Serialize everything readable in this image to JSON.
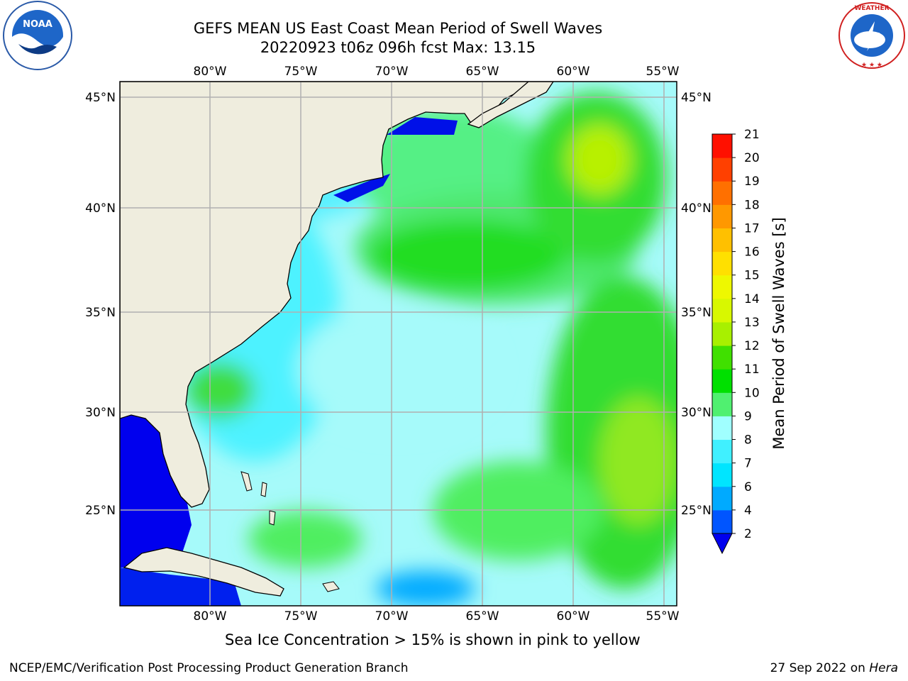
{
  "title_line1": "GEFS MEAN US East Coast Mean Period of Swell Waves",
  "title_line2": "20220923 t06z 096h fcst   Max: 13.15",
  "logos": {
    "left": "noaa-logo",
    "right": "nws-logo"
  },
  "map": {
    "lon_labels": [
      "80°W",
      "75°W",
      "70°W",
      "65°W",
      "60°W",
      "55°W"
    ],
    "lat_labels": [
      "45°N",
      "40°N",
      "35°N",
      "30°N",
      "25°N"
    ],
    "lon_range": [
      "85°W",
      "54.3°W"
    ],
    "lat_range": [
      "20.3°N",
      "45.8°N"
    ],
    "grid": true,
    "land_color": "#efedde",
    "grid_color": "#b0b0b0"
  },
  "colorbar": {
    "label": "Mean Period of Swell Waves [s]",
    "ticks": [
      "2",
      "4",
      "6",
      "7",
      "8",
      "9",
      "10",
      "11",
      "12",
      "13",
      "14",
      "15",
      "16",
      "17",
      "18",
      "19",
      "20",
      "21"
    ],
    "colors": [
      "#0055ff",
      "#00aaff",
      "#00e5ff",
      "#40f0ff",
      "#a0ffff",
      "#50f070",
      "#00e000",
      "#40e000",
      "#a8f000",
      "#d8f800",
      "#eef800",
      "#ffe000",
      "#ffc000",
      "#ff9800",
      "#ff7000",
      "#ff4000",
      "#ff1000"
    ],
    "extend_color": "#0000ee"
  },
  "sea_ice_note": "Sea Ice Concentration > 15% is shown in pink to yellow",
  "footer": {
    "left": "NCEP/EMC/Verification Post Processing Product Generation Branch",
    "date": "27 Sep 2022 on ",
    "host": "Hera"
  }
}
